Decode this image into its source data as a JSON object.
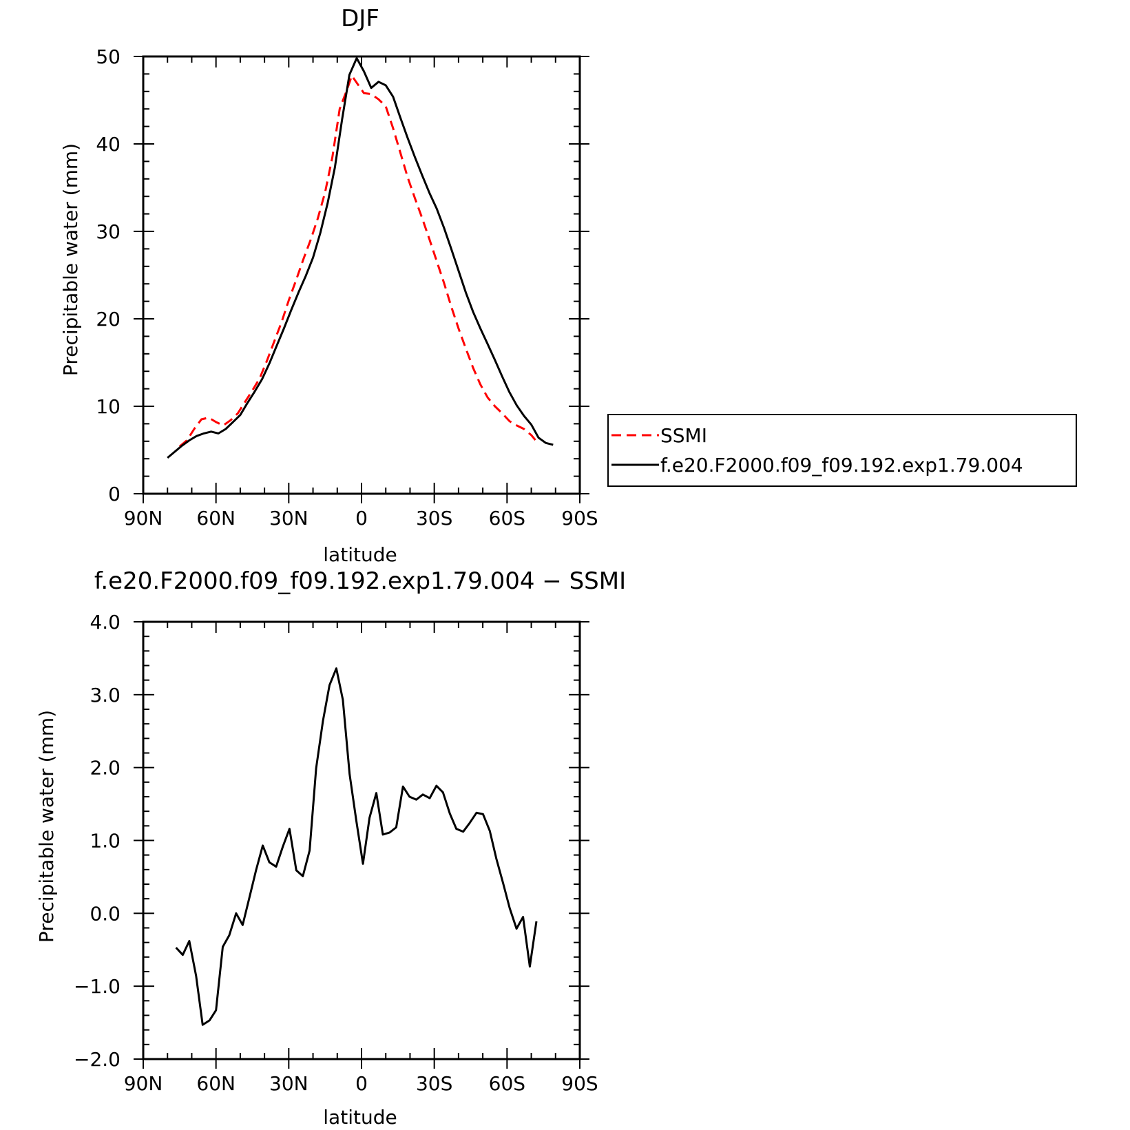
{
  "chart_data": [
    {
      "type": "line",
      "title": "DJF",
      "xlabel": "latitude",
      "ylabel": "Precipitable water (mm)",
      "xlim": [
        90,
        -90
      ],
      "ylim": [
        0,
        50
      ],
      "x_ticks": [
        90,
        60,
        30,
        0,
        -30,
        -60,
        -90
      ],
      "x_tick_labels": [
        "90N",
        "60N",
        "30N",
        "0",
        "30S",
        "60S",
        "90S"
      ],
      "y_ticks": [
        0,
        10,
        20,
        30,
        40,
        50
      ],
      "y_tick_labels": [
        "0",
        "10",
        "20",
        "30",
        "40",
        "50"
      ],
      "legend": "right",
      "series": [
        {
          "name": "SSMI",
          "color": "#ff0000",
          "dash": "dashed",
          "points": [
            [
              75,
              5.4
            ],
            [
              72,
              6.1
            ],
            [
              69,
              7.4
            ],
            [
              66,
              8.5
            ],
            [
              63,
              8.7
            ],
            [
              60,
              8.2
            ],
            [
              57,
              7.8
            ],
            [
              54,
              8.4
            ],
            [
              51,
              9.2
            ],
            [
              48,
              10.5
            ],
            [
              45,
              11.8
            ],
            [
              42,
              13.2
            ],
            [
              39,
              15.2
            ],
            [
              36,
              17.4
            ],
            [
              33,
              19.6
            ],
            [
              30,
              22.1
            ],
            [
              27,
              24.4
            ],
            [
              24,
              26.8
            ],
            [
              21,
              29.0
            ],
            [
              18,
              31.5
            ],
            [
              15,
              34.5
            ],
            [
              12,
              38.5
            ],
            [
              9,
              44.0
            ],
            [
              6,
              46.2
            ],
            [
              4,
              47.8
            ],
            [
              1,
              46.6
            ],
            [
              -1,
              45.8
            ],
            [
              -4,
              45.7
            ],
            [
              -7,
              45.1
            ],
            [
              -10,
              44.3
            ],
            [
              -13,
              41.8
            ],
            [
              -16,
              39.0
            ],
            [
              -19,
              36.2
            ],
            [
              -22,
              33.8
            ],
            [
              -25,
              31.5
            ],
            [
              -28,
              29.1
            ],
            [
              -31,
              26.6
            ],
            [
              -34,
              24.1
            ],
            [
              -37,
              21.4
            ],
            [
              -40,
              18.9
            ],
            [
              -43,
              16.6
            ],
            [
              -46,
              14.4
            ],
            [
              -49,
              12.5
            ],
            [
              -52,
              11.0
            ],
            [
              -55,
              10.0
            ],
            [
              -58,
              9.2
            ],
            [
              -61,
              8.3
            ],
            [
              -64,
              7.8
            ],
            [
              -67,
              7.4
            ],
            [
              -70,
              6.7
            ],
            [
              -73,
              5.7
            ]
          ]
        },
        {
          "name": "f.e20.F2000.f09_f09.192.exp1.79.004",
          "color": "#000000",
          "dash": "solid",
          "points": [
            [
              80,
              4.1
            ],
            [
              77,
              4.8
            ],
            [
              74,
              5.5
            ],
            [
              71,
              6.1
            ],
            [
              68,
              6.6
            ],
            [
              65,
              6.9
            ],
            [
              62,
              7.1
            ],
            [
              59,
              6.9
            ],
            [
              56,
              7.4
            ],
            [
              53,
              8.2
            ],
            [
              50,
              9.0
            ],
            [
              47,
              10.4
            ],
            [
              44,
              11.7
            ],
            [
              41,
              13.1
            ],
            [
              38,
              14.9
            ],
            [
              35,
              16.9
            ],
            [
              32,
              18.9
            ],
            [
              29,
              21.0
            ],
            [
              26,
              23.0
            ],
            [
              23,
              24.9
            ],
            [
              20,
              27.0
            ],
            [
              17,
              29.8
            ],
            [
              14,
              33.2
            ],
            [
              11,
              37.3
            ],
            [
              8,
              42.8
            ],
            [
              5,
              47.9
            ],
            [
              2,
              49.8
            ],
            [
              -1,
              48.3
            ],
            [
              -4,
              46.4
            ],
            [
              -7,
              47.1
            ],
            [
              -10,
              46.7
            ],
            [
              -13,
              45.4
            ],
            [
              -16,
              43.0
            ],
            [
              -19,
              40.7
            ],
            [
              -22,
              38.5
            ],
            [
              -25,
              36.4
            ],
            [
              -28,
              34.4
            ],
            [
              -31,
              32.6
            ],
            [
              -34,
              30.4
            ],
            [
              -37,
              28.0
            ],
            [
              -40,
              25.5
            ],
            [
              -43,
              23.0
            ],
            [
              -46,
              20.8
            ],
            [
              -49,
              18.9
            ],
            [
              -52,
              17.1
            ],
            [
              -55,
              15.3
            ],
            [
              -58,
              13.4
            ],
            [
              -61,
              11.6
            ],
            [
              -64,
              10.1
            ],
            [
              -67,
              8.9
            ],
            [
              -70,
              7.9
            ],
            [
              -73,
              6.4
            ],
            [
              -76,
              5.8
            ],
            [
              -79,
              5.6
            ]
          ]
        }
      ]
    },
    {
      "type": "line",
      "title": "f.e20.F2000.f09_f09.192.exp1.79.004 − SSMI",
      "xlabel": "latitude",
      "ylabel": "Precipitable water (mm)",
      "xlim": [
        90,
        -90
      ],
      "ylim": [
        -2,
        4
      ],
      "x_ticks": [
        90,
        60,
        30,
        0,
        -30,
        -60,
        -90
      ],
      "x_tick_labels": [
        "90N",
        "60N",
        "30N",
        "0",
        "30S",
        "60S",
        "90S"
      ],
      "y_ticks": [
        -2,
        -1,
        0,
        1,
        2,
        3,
        4
      ],
      "y_tick_labels": [
        "−2.0",
        "−1.0",
        "0.0",
        "1.0",
        "2.0",
        "3.0",
        "4.0"
      ],
      "series": [
        {
          "color": "#000000",
          "dash": "solid",
          "points": [
            [
              76.5,
              -0.47
            ],
            [
              73.7,
              -0.57
            ],
            [
              71.0,
              -0.38
            ],
            [
              68.2,
              -0.86
            ],
            [
              65.5,
              -1.53
            ],
            [
              62.7,
              -1.47
            ],
            [
              60.0,
              -1.33
            ],
            [
              57.2,
              -0.46
            ],
            [
              54.5,
              -0.3
            ],
            [
              51.7,
              0.0
            ],
            [
              49.0,
              -0.16
            ],
            [
              46.2,
              0.22
            ],
            [
              43.5,
              0.59
            ],
            [
              40.7,
              0.93
            ],
            [
              38.0,
              0.7
            ],
            [
              35.2,
              0.64
            ],
            [
              32.4,
              0.92
            ],
            [
              29.7,
              1.16
            ],
            [
              26.9,
              0.59
            ],
            [
              24.2,
              0.51
            ],
            [
              21.4,
              0.86
            ],
            [
              18.7,
              1.99
            ],
            [
              15.9,
              2.64
            ],
            [
              13.2,
              3.13
            ],
            [
              10.4,
              3.36
            ],
            [
              7.7,
              2.93
            ],
            [
              4.9,
              1.91
            ],
            [
              2.2,
              1.28
            ],
            [
              -0.6,
              0.68
            ],
            [
              -3.3,
              1.31
            ],
            [
              -6.1,
              1.65
            ],
            [
              -8.8,
              1.08
            ],
            [
              -11.6,
              1.11
            ],
            [
              -14.3,
              1.18
            ],
            [
              -17.1,
              1.74
            ],
            [
              -19.8,
              1.6
            ],
            [
              -22.6,
              1.56
            ],
            [
              -25.3,
              1.63
            ],
            [
              -28.1,
              1.58
            ],
            [
              -30.9,
              1.75
            ],
            [
              -33.6,
              1.66
            ],
            [
              -36.4,
              1.37
            ],
            [
              -39.1,
              1.16
            ],
            [
              -41.9,
              1.12
            ],
            [
              -44.6,
              1.24
            ],
            [
              -47.4,
              1.38
            ],
            [
              -50.1,
              1.36
            ],
            [
              -52.9,
              1.13
            ],
            [
              -55.6,
              0.75
            ],
            [
              -58.4,
              0.41
            ],
            [
              -61.1,
              0.07
            ],
            [
              -63.9,
              -0.21
            ],
            [
              -66.6,
              -0.05
            ],
            [
              -69.4,
              -0.73
            ],
            [
              -72.1,
              -0.11
            ]
          ]
        }
      ]
    }
  ]
}
